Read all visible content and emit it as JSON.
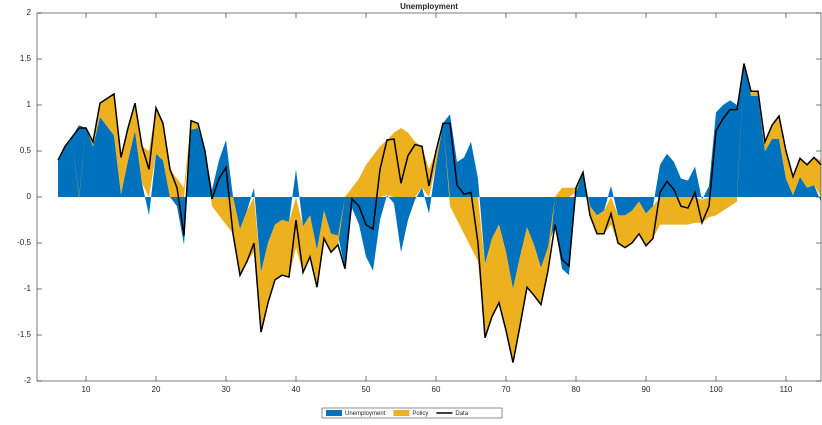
{
  "chart_data": {
    "type": "area",
    "title": "Unemployment",
    "x": [
      6,
      7,
      8,
      9,
      10,
      11,
      12,
      13,
      14,
      15,
      16,
      17,
      18,
      19,
      20,
      21,
      22,
      23,
      24,
      25,
      26,
      27,
      28,
      29,
      30,
      31,
      32,
      33,
      34,
      35,
      36,
      37,
      38,
      39,
      40,
      41,
      42,
      43,
      44,
      45,
      46,
      47,
      48,
      49,
      50,
      51,
      52,
      53,
      54,
      55,
      56,
      57,
      58,
      59,
      60,
      61,
      62,
      63,
      64,
      65,
      66,
      67,
      68,
      69,
      70,
      71,
      72,
      73,
      74,
      75,
      76,
      77,
      78,
      79,
      80,
      81,
      82,
      83,
      84,
      85,
      86,
      87,
      88,
      89,
      90,
      91,
      92,
      93,
      94,
      95,
      96,
      97,
      98,
      99,
      100,
      101,
      102,
      103,
      104,
      105,
      106,
      107,
      108,
      109,
      110,
      111,
      112,
      113,
      114,
      115
    ],
    "series": [
      {
        "name": "Unemployment",
        "color": "#0072bd",
        "values": [
          0.4,
          0.55,
          0.65,
          0.78,
          0.75,
          0.55,
          0.87,
          0.77,
          0.67,
          0.03,
          0.4,
          0.72,
          0.15,
          -0.2,
          0.47,
          0.4,
          0,
          -0.1,
          -0.52,
          0.73,
          0.75,
          0.5,
          0.08,
          0.4,
          0.62,
          0,
          -0.35,
          -0.15,
          0.1,
          -0.82,
          -0.5,
          -0.3,
          -0.25,
          -0.27,
          0.3,
          -0.32,
          -0.2,
          -0.58,
          -0.15,
          -0.4,
          -0.42,
          -0.78,
          -0.12,
          -0.3,
          -0.65,
          -0.8,
          -0.25,
          0.02,
          -0.07,
          -0.6,
          -0.25,
          -0.03,
          0.1,
          -0.18,
          0.35,
          0.8,
          0.9,
          0.38,
          0.43,
          0.6,
          0.2,
          -0.73,
          -0.45,
          -0.3,
          -0.6,
          -1,
          -0.65,
          -0.33,
          -0.52,
          -0.77,
          -0.55,
          -0.3,
          -0.78,
          -0.85,
          0.05,
          0.27,
          -0.1,
          -0.2,
          -0.15,
          0.12,
          -0.2,
          -0.2,
          -0.15,
          -0.05,
          -0.18,
          -0.1,
          0.35,
          0.47,
          0.38,
          0.2,
          0.18,
          0.33,
          -0.03,
          0.12,
          0.92,
          1,
          1.05,
          1,
          1.45,
          1.1,
          1.1,
          0.5,
          0.63,
          0.63,
          0.2,
          0.02,
          0.22,
          0.1,
          0.13,
          -0.05
        ]
      },
      {
        "name": "Policy",
        "color": "#edb120",
        "values": [
          0,
          0,
          0,
          -0.03,
          0,
          0.05,
          0.15,
          0.3,
          0.45,
          0.4,
          0.35,
          0.3,
          0.4,
          0.5,
          0.5,
          0.4,
          0.3,
          0.2,
          0.1,
          0.1,
          0.05,
          0,
          -0.1,
          -0.2,
          -0.3,
          -0.4,
          -0.5,
          -0.55,
          -0.6,
          -0.65,
          -0.65,
          -0.6,
          -0.6,
          -0.6,
          -0.55,
          -0.5,
          -0.45,
          -0.4,
          -0.3,
          -0.2,
          -0.1,
          0,
          0.1,
          0.2,
          0.35,
          0.45,
          0.55,
          0.6,
          0.7,
          0.75,
          0.7,
          0.6,
          0.45,
          0.3,
          0.15,
          0,
          -0.1,
          -0.25,
          -0.4,
          -0.55,
          -0.7,
          -0.8,
          -0.85,
          -0.85,
          -0.85,
          -0.8,
          -0.75,
          -0.65,
          -0.55,
          -0.4,
          -0.25,
          0,
          0.1,
          0.1,
          0.05,
          0,
          -0.1,
          -0.2,
          -0.25,
          -0.3,
          -0.3,
          -0.35,
          -0.35,
          -0.35,
          -0.35,
          -0.35,
          -0.3,
          -0.3,
          -0.3,
          -0.3,
          -0.3,
          -0.28,
          -0.25,
          -0.22,
          -0.2,
          -0.15,
          -0.1,
          -0.05,
          0,
          0.05,
          0.05,
          0.1,
          0.15,
          0.25,
          0.3,
          0.2,
          0.2,
          0.25,
          0.3,
          0.4
        ]
      },
      {
        "name": "Data",
        "color": "#000000",
        "line": true,
        "values": [
          0.4,
          0.55,
          0.65,
          0.75,
          0.75,
          0.6,
          1.02,
          1.07,
          1.12,
          0.43,
          0.75,
          1.02,
          0.55,
          0.3,
          0.97,
          0.8,
          0.3,
          0.1,
          -0.42,
          0.83,
          0.8,
          0.5,
          -0.02,
          0.2,
          0.32,
          -0.4,
          -0.85,
          -0.7,
          -0.5,
          -1.47,
          -1.15,
          -0.9,
          -0.85,
          -0.87,
          -0.25,
          -0.82,
          -0.65,
          -0.98,
          -0.45,
          -0.6,
          -0.52,
          -0.78,
          -0.02,
          -0.1,
          -0.3,
          -0.35,
          0.3,
          0.62,
          0.63,
          0.15,
          0.45,
          0.57,
          0.55,
          0.12,
          0.5,
          0.8,
          0.8,
          0.13,
          0.03,
          0.05,
          -0.5,
          -1.53,
          -1.3,
          -1.15,
          -1.45,
          -1.8,
          -1.4,
          -0.98,
          -1.07,
          -1.17,
          -0.8,
          -0.3,
          -0.68,
          -0.75,
          0.1,
          0.27,
          -0.2,
          -0.4,
          -0.4,
          -0.18,
          -0.5,
          -0.55,
          -0.5,
          -0.4,
          -0.53,
          -0.45,
          0.05,
          0.17,
          0.08,
          -0.1,
          -0.12,
          0.05,
          -0.28,
          -0.1,
          0.72,
          0.85,
          0.95,
          0.95,
          1.45,
          1.15,
          1.15,
          0.6,
          0.78,
          0.88,
          0.5,
          0.22,
          0.42,
          0.35,
          0.43,
          0.35
        ]
      }
    ],
    "xlim": [
      3,
      115
    ],
    "xticks": [
      10,
      20,
      30,
      40,
      50,
      60,
      70,
      80,
      90,
      100,
      110
    ],
    "ylim": [
      -2,
      2
    ],
    "yticks": [
      -2,
      -1.5,
      -1,
      -0.5,
      0,
      0.5,
      1,
      1.5,
      2
    ]
  }
}
